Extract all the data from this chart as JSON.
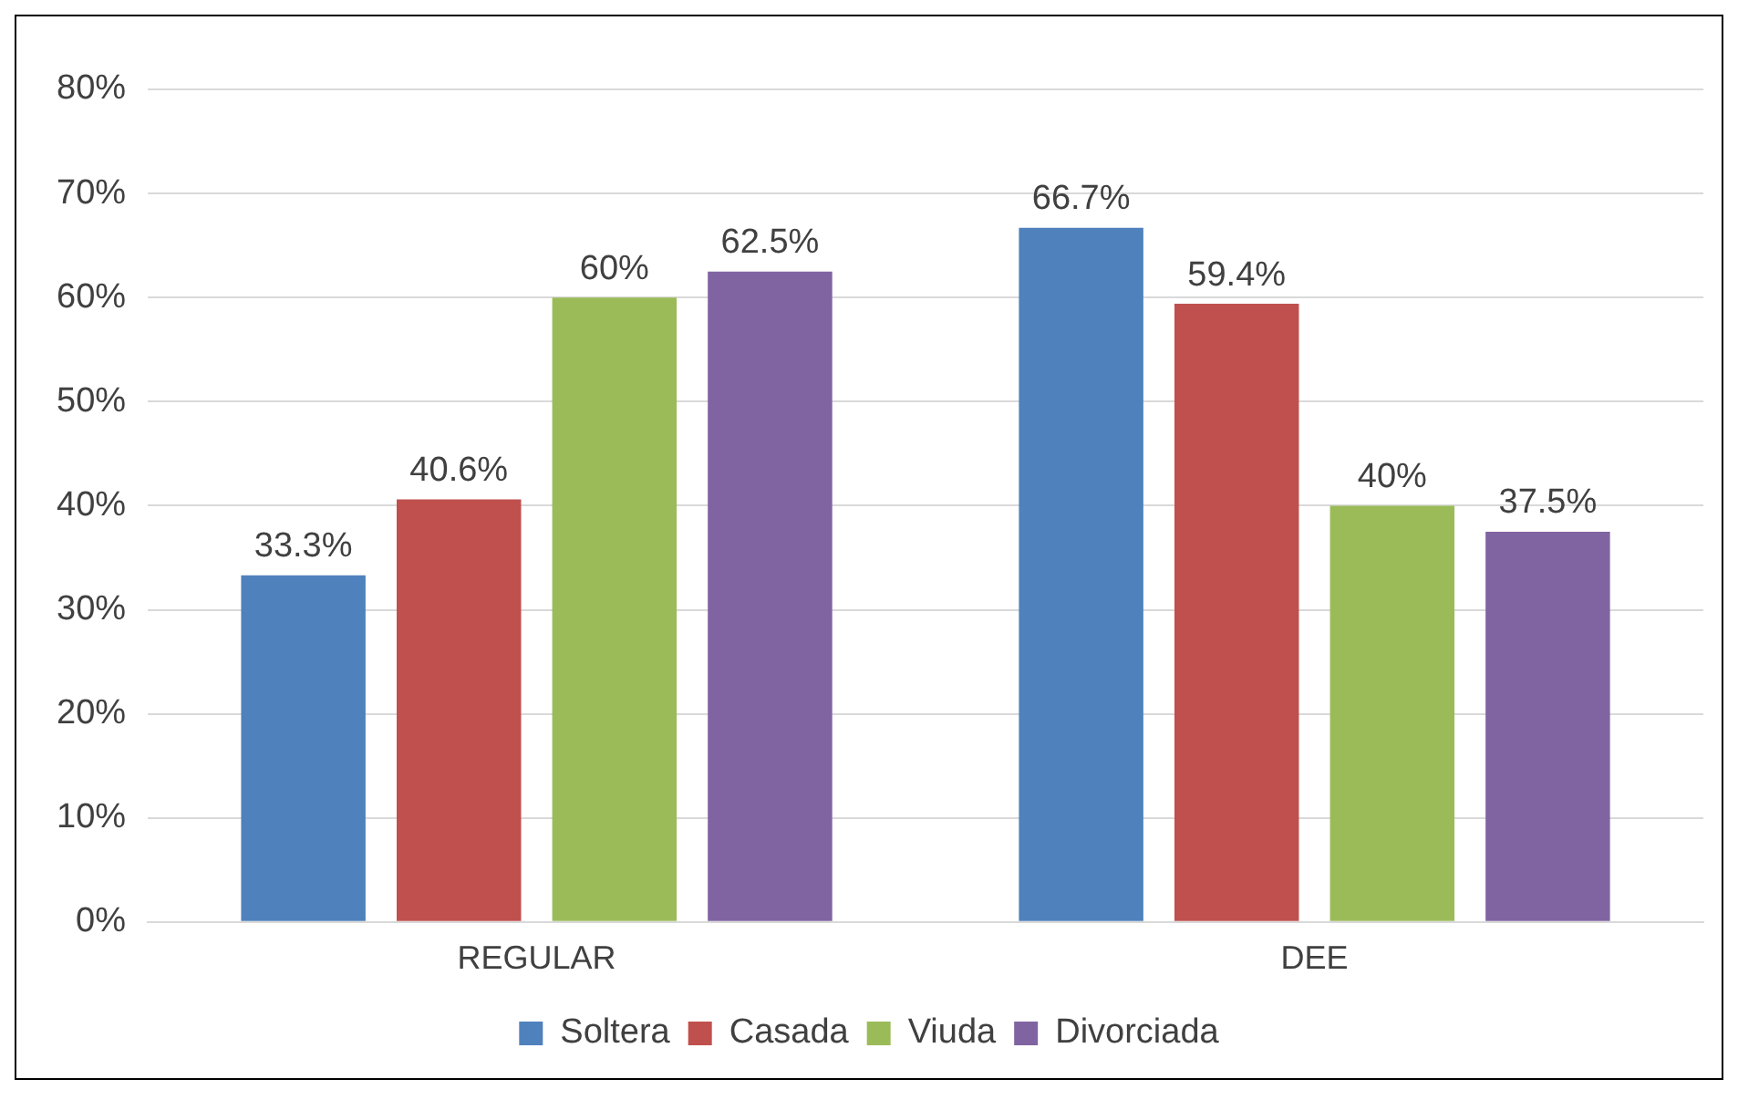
{
  "chart_data": {
    "type": "bar",
    "categories": [
      "REGULAR",
      "DEE"
    ],
    "series": [
      {
        "name": "Soltera",
        "color": "#4f81bd",
        "values": [
          33.3,
          66.7
        ],
        "value_labels": [
          "33.3%",
          "66.7%"
        ]
      },
      {
        "name": "Casada",
        "color": "#c0504d",
        "values": [
          40.6,
          59.4
        ],
        "value_labels": [
          "40.6%",
          "59.4%"
        ]
      },
      {
        "name": "Viuda",
        "color": "#9bbb59",
        "values": [
          60,
          40
        ],
        "value_labels": [
          "60%",
          "40%"
        ]
      },
      {
        "name": "Divorciada",
        "color": "#8064a2",
        "values": [
          62.5,
          37.5
        ],
        "value_labels": [
          "62.5%",
          "37.5%"
        ]
      }
    ],
    "ylim": [
      0,
      80
    ],
    "yticks": [
      {
        "value": 0,
        "label": "0%"
      },
      {
        "value": 10,
        "label": "10%"
      },
      {
        "value": 20,
        "label": "20%"
      },
      {
        "value": 30,
        "label": "30%"
      },
      {
        "value": 40,
        "label": "40%"
      },
      {
        "value": 50,
        "label": "50%"
      },
      {
        "value": 60,
        "label": "60%"
      },
      {
        "value": 70,
        "label": "70%"
      },
      {
        "value": 80,
        "label": "80%"
      }
    ],
    "grid": "y",
    "legend": "bottom"
  }
}
